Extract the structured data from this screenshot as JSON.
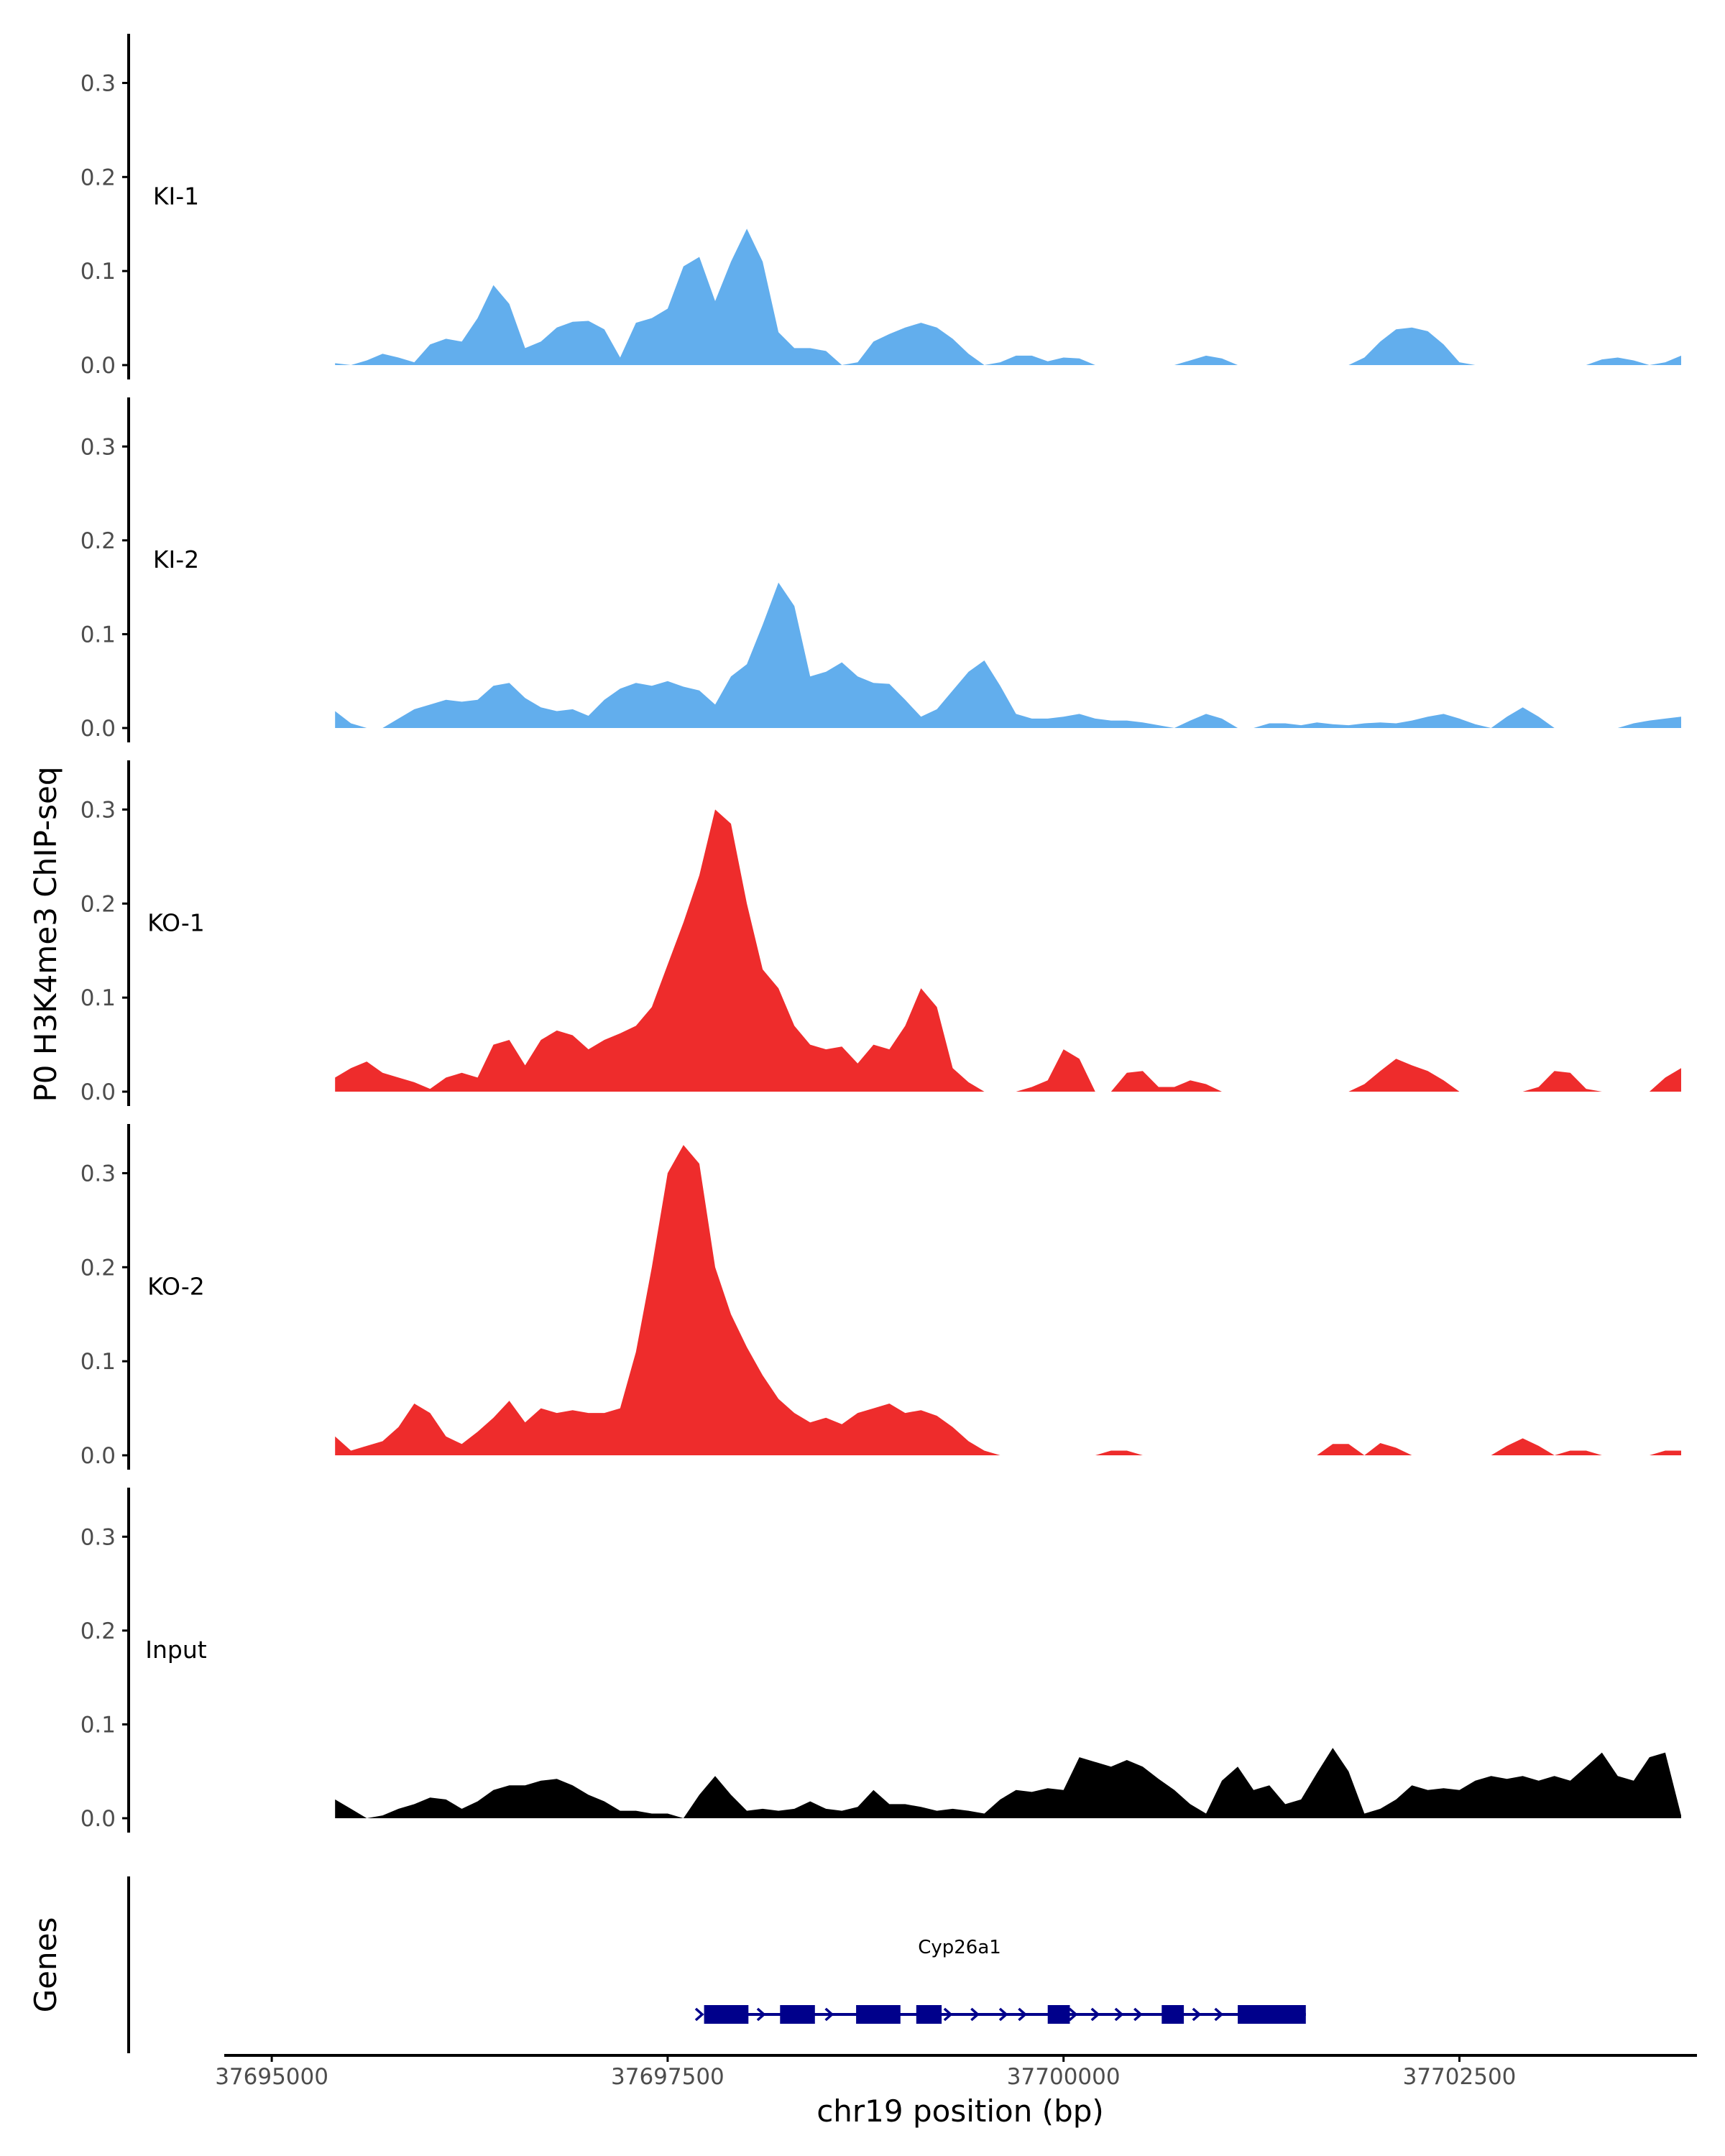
{
  "chart_data": {
    "type": "area",
    "y_axis_title": "P0 H3K4me3 ChIP-seq",
    "x_axis_title": "chr19 position (bp)",
    "gene_track_title": "Genes",
    "ylim": [
      0,
      0.35
    ],
    "y_ticks": [
      0.0,
      0.1,
      0.2,
      0.3
    ],
    "y_tick_labels": [
      "0.0",
      "0.1",
      "0.2",
      "0.3"
    ],
    "xlim": [
      37694700,
      37704000
    ],
    "x_ticks": [
      37695000,
      37697500,
      37700000,
      37702500
    ],
    "x_tick_labels": [
      "37695000",
      "37697500",
      "37700000",
      "37702500"
    ],
    "colors": {
      "KI": "#62aeed",
      "KO": "#ee2c2c",
      "Input": "#000000",
      "gene": "#00008b"
    },
    "tracks": [
      {
        "name": "KI-1",
        "color": "#62aeed",
        "x": [
          37695400,
          37695500,
          37695600,
          37695700,
          37695800,
          37695900,
          37696000,
          37696100,
          37696200,
          37696300,
          37696400,
          37696500,
          37696600,
          37696700,
          37696800,
          37696900,
          37697000,
          37697100,
          37697200,
          37697300,
          37697400,
          37697500,
          37697600,
          37697700,
          37697800,
          37697900,
          37698000,
          37698100,
          37698200,
          37698300,
          37698400,
          37698500,
          37698600,
          37698700,
          37698800,
          37698900,
          37699000,
          37699100,
          37699200,
          37699300,
          37699400,
          37699500,
          37699600,
          37699700,
          37699800,
          37699900,
          37700000,
          37700100,
          37700200,
          37700300,
          37700400,
          37700500,
          37700600,
          37700700,
          37700800,
          37700900,
          37701000,
          37701100,
          37701200,
          37701300,
          37701400,
          37701500,
          37701600,
          37701700,
          37701800,
          37701900,
          37702000,
          37702100,
          37702200,
          37702300,
          37702400,
          37702500,
          37702600,
          37702700,
          37702800,
          37702900,
          37703000,
          37703100,
          37703200,
          37703300,
          37703400,
          37703500,
          37703600,
          37703700,
          37703800,
          37703900
        ],
        "y": [
          0.002,
          0.0,
          0.005,
          0.012,
          0.008,
          0.003,
          0.022,
          0.028,
          0.025,
          0.05,
          0.085,
          0.065,
          0.018,
          0.025,
          0.04,
          0.046,
          0.047,
          0.038,
          0.008,
          0.045,
          0.05,
          0.06,
          0.105,
          0.115,
          0.068,
          0.11,
          0.145,
          0.11,
          0.035,
          0.018,
          0.018,
          0.015,
          0.0,
          0.003,
          0.025,
          0.033,
          0.04,
          0.045,
          0.04,
          0.028,
          0.012,
          0.0,
          0.003,
          0.01,
          0.01,
          0.004,
          0.008,
          0.007,
          0.0,
          0.0,
          0.0,
          0.0,
          0.0,
          0.0,
          0.005,
          0.01,
          0.007,
          0.0,
          0.0,
          0.0,
          0.0,
          0.0,
          0.0,
          0.0,
          0.0,
          0.008,
          0.025,
          0.038,
          0.04,
          0.036,
          0.022,
          0.003,
          0.0,
          0.0,
          0.0,
          0.0,
          0.0,
          0.0,
          0.0,
          0.0,
          0.006,
          0.008,
          0.005,
          0.0,
          0.003,
          0.01
        ]
      },
      {
        "name": "KI-2",
        "color": "#62aeed",
        "x": [
          37695400,
          37695500,
          37695600,
          37695700,
          37695800,
          37695900,
          37696000,
          37696100,
          37696200,
          37696300,
          37696400,
          37696500,
          37696600,
          37696700,
          37696800,
          37696900,
          37697000,
          37697100,
          37697200,
          37697300,
          37697400,
          37697500,
          37697600,
          37697700,
          37697800,
          37697900,
          37698000,
          37698100,
          37698200,
          37698300,
          37698400,
          37698500,
          37698600,
          37698700,
          37698800,
          37698900,
          37699000,
          37699100,
          37699200,
          37699300,
          37699400,
          37699500,
          37699600,
          37699700,
          37699800,
          37699900,
          37700000,
          37700100,
          37700200,
          37700300,
          37700400,
          37700500,
          37700600,
          37700700,
          37700800,
          37700900,
          37701000,
          37701100,
          37701200,
          37701300,
          37701400,
          37701500,
          37701600,
          37701700,
          37701800,
          37701900,
          37702000,
          37702100,
          37702200,
          37702300,
          37702400,
          37702500,
          37702600,
          37702700,
          37702800,
          37702900,
          37703000,
          37703100,
          37703200,
          37703300,
          37703400,
          37703500,
          37703600,
          37703700,
          37703800,
          37703900
        ],
        "y": [
          0.018,
          0.005,
          0.0,
          0.0,
          0.01,
          0.02,
          0.025,
          0.03,
          0.028,
          0.03,
          0.045,
          0.048,
          0.032,
          0.022,
          0.018,
          0.02,
          0.013,
          0.03,
          0.042,
          0.048,
          0.045,
          0.05,
          0.044,
          0.04,
          0.025,
          0.055,
          0.068,
          0.11,
          0.155,
          0.13,
          0.055,
          0.06,
          0.07,
          0.055,
          0.048,
          0.047,
          0.03,
          0.012,
          0.02,
          0.04,
          0.06,
          0.072,
          0.045,
          0.015,
          0.01,
          0.01,
          0.012,
          0.015,
          0.01,
          0.008,
          0.008,
          0.006,
          0.003,
          0.0,
          0.008,
          0.015,
          0.01,
          0.0,
          0.0,
          0.005,
          0.005,
          0.003,
          0.006,
          0.004,
          0.003,
          0.005,
          0.006,
          0.005,
          0.008,
          0.012,
          0.015,
          0.01,
          0.004,
          0.0,
          0.012,
          0.022,
          0.012,
          0.0,
          0.0,
          0.0,
          0.0,
          0.0,
          0.005,
          0.008,
          0.01,
          0.012
        ]
      },
      {
        "name": "KO-1",
        "color": "#ee2c2c",
        "x": [
          37695400,
          37695500,
          37695600,
          37695700,
          37695800,
          37695900,
          37696000,
          37696100,
          37696200,
          37696300,
          37696400,
          37696500,
          37696600,
          37696700,
          37696800,
          37696900,
          37697000,
          37697100,
          37697200,
          37697300,
          37697400,
          37697500,
          37697600,
          37697700,
          37697800,
          37697900,
          37698000,
          37698100,
          37698200,
          37698300,
          37698400,
          37698500,
          37698600,
          37698700,
          37698800,
          37698900,
          37699000,
          37699100,
          37699200,
          37699300,
          37699400,
          37699500,
          37699600,
          37699700,
          37699800,
          37699900,
          37700000,
          37700100,
          37700200,
          37700300,
          37700400,
          37700500,
          37700600,
          37700700,
          37700800,
          37700900,
          37701000,
          37701100,
          37701200,
          37701300,
          37701400,
          37701500,
          37701600,
          37701700,
          37701800,
          37701900,
          37702000,
          37702100,
          37702200,
          37702300,
          37702400,
          37702500,
          37702600,
          37702700,
          37702800,
          37702900,
          37703000,
          37703100,
          37703200,
          37703300,
          37703400,
          37703500,
          37703600,
          37703700,
          37703800,
          37703900
        ],
        "y": [
          0.015,
          0.025,
          0.032,
          0.02,
          0.015,
          0.01,
          0.003,
          0.015,
          0.02,
          0.015,
          0.05,
          0.055,
          0.028,
          0.055,
          0.065,
          0.06,
          0.045,
          0.055,
          0.062,
          0.07,
          0.09,
          0.135,
          0.18,
          0.23,
          0.3,
          0.285,
          0.2,
          0.13,
          0.11,
          0.07,
          0.05,
          0.045,
          0.048,
          0.03,
          0.05,
          0.045,
          0.07,
          0.11,
          0.09,
          0.025,
          0.01,
          0.0,
          0.0,
          0.0,
          0.005,
          0.012,
          0.045,
          0.035,
          0.0,
          0.0,
          0.02,
          0.022,
          0.005,
          0.005,
          0.012,
          0.008,
          0.0,
          0.0,
          0.0,
          0.0,
          0.0,
          0.0,
          0.0,
          0.0,
          0.0,
          0.008,
          0.022,
          0.035,
          0.028,
          0.022,
          0.012,
          0.0,
          0.0,
          0.0,
          0.0,
          0.0,
          0.005,
          0.022,
          0.02,
          0.003,
          0.0,
          0.0,
          0.0,
          0.0,
          0.015,
          0.025
        ]
      },
      {
        "name": "KO-2",
        "color": "#ee2c2c",
        "x": [
          37695400,
          37695500,
          37695600,
          37695700,
          37695800,
          37695900,
          37696000,
          37696100,
          37696200,
          37696300,
          37696400,
          37696500,
          37696600,
          37696700,
          37696800,
          37696900,
          37697000,
          37697100,
          37697200,
          37697300,
          37697400,
          37697500,
          37697600,
          37697700,
          37697800,
          37697900,
          37698000,
          37698100,
          37698200,
          37698300,
          37698400,
          37698500,
          37698600,
          37698700,
          37698800,
          37698900,
          37699000,
          37699100,
          37699200,
          37699300,
          37699400,
          37699500,
          37699600,
          37699700,
          37699800,
          37699900,
          37700000,
          37700100,
          37700200,
          37700300,
          37700400,
          37700500,
          37700600,
          37700700,
          37700800,
          37700900,
          37701000,
          37701100,
          37701200,
          37701300,
          37701400,
          37701500,
          37701600,
          37701700,
          37701800,
          37701900,
          37702000,
          37702100,
          37702200,
          37702300,
          37702400,
          37702500,
          37702600,
          37702700,
          37702800,
          37702900,
          37703000,
          37703100,
          37703200,
          37703300,
          37703400,
          37703500,
          37703600,
          37703700,
          37703800,
          37703900
        ],
        "y": [
          0.02,
          0.005,
          0.01,
          0.015,
          0.03,
          0.055,
          0.045,
          0.02,
          0.012,
          0.025,
          0.04,
          0.058,
          0.035,
          0.05,
          0.045,
          0.048,
          0.045,
          0.045,
          0.05,
          0.11,
          0.2,
          0.3,
          0.33,
          0.31,
          0.2,
          0.15,
          0.115,
          0.085,
          0.06,
          0.045,
          0.035,
          0.04,
          0.033,
          0.045,
          0.05,
          0.055,
          0.045,
          0.048,
          0.042,
          0.03,
          0.015,
          0.005,
          0.0,
          0.0,
          0.0,
          0.0,
          0.0,
          0.0,
          0.0,
          0.005,
          0.005,
          0.0,
          0.0,
          0.0,
          0.0,
          0.0,
          0.0,
          0.0,
          0.0,
          0.0,
          0.0,
          0.0,
          0.0,
          0.012,
          0.012,
          0.0,
          0.013,
          0.008,
          0.0,
          0.0,
          0.0,
          0.0,
          0.0,
          0.0,
          0.01,
          0.018,
          0.01,
          0.0,
          0.005,
          0.005,
          0.0,
          0.0,
          0.0,
          0.0,
          0.005,
          0.005
        ]
      },
      {
        "name": "Input",
        "color": "#000000",
        "x": [
          37695400,
          37695500,
          37695600,
          37695700,
          37695800,
          37695900,
          37696000,
          37696100,
          37696200,
          37696300,
          37696400,
          37696500,
          37696600,
          37696700,
          37696800,
          37696900,
          37697000,
          37697100,
          37697200,
          37697300,
          37697400,
          37697500,
          37697600,
          37697700,
          37697800,
          37697900,
          37698000,
          37698100,
          37698200,
          37698300,
          37698400,
          37698500,
          37698600,
          37698700,
          37698800,
          37698900,
          37699000,
          37699100,
          37699200,
          37699300,
          37699400,
          37699500,
          37699600,
          37699700,
          37699800,
          37699900,
          37700000,
          37700100,
          37700200,
          37700300,
          37700400,
          37700500,
          37700600,
          37700700,
          37700800,
          37700900,
          37701000,
          37701100,
          37701200,
          37701300,
          37701400,
          37701500,
          37701600,
          37701700,
          37701800,
          37701900,
          37702000,
          37702100,
          37702200,
          37702300,
          37702400,
          37702500,
          37702600,
          37702700,
          37702800,
          37702900,
          37703000,
          37703100,
          37703200,
          37703300,
          37703400,
          37703500,
          37703600,
          37703700,
          37703800,
          37703900
        ],
        "y": [
          0.02,
          0.01,
          0.0,
          0.003,
          0.01,
          0.015,
          0.022,
          0.02,
          0.01,
          0.018,
          0.03,
          0.035,
          0.035,
          0.04,
          0.042,
          0.035,
          0.025,
          0.018,
          0.008,
          0.008,
          0.005,
          0.005,
          0.0,
          0.025,
          0.045,
          0.025,
          0.008,
          0.01,
          0.008,
          0.01,
          0.018,
          0.01,
          0.008,
          0.012,
          0.03,
          0.015,
          0.015,
          0.012,
          0.008,
          0.01,
          0.008,
          0.005,
          0.02,
          0.03,
          0.028,
          0.032,
          0.03,
          0.065,
          0.06,
          0.055,
          0.062,
          0.055,
          0.042,
          0.03,
          0.015,
          0.005,
          0.04,
          0.055,
          0.03,
          0.035,
          0.015,
          0.02,
          0.048,
          0.075,
          0.05,
          0.005,
          0.01,
          0.02,
          0.035,
          0.03,
          0.032,
          0.03,
          0.04,
          0.045,
          0.042,
          0.045,
          0.04,
          0.045,
          0.04,
          0.055,
          0.07,
          0.045,
          0.04,
          0.065,
          0.07,
          0.003
        ]
      }
    ],
    "gene": {
      "name": "Cyp26a1",
      "strand": "+",
      "start": 37697730,
      "end": 37701530,
      "exons": [
        [
          37697730,
          37698010
        ],
        [
          37698210,
          37698430
        ],
        [
          37698690,
          37698970
        ],
        [
          37699070,
          37699230
        ],
        [
          37699900,
          37700040
        ],
        [
          37700620,
          37700760
        ],
        [
          37701100,
          37701530
        ]
      ],
      "arrows": [
        37697700,
        37698090,
        37698520,
        37699270,
        37699440,
        37699620,
        37699740,
        37700060,
        37700200,
        37700350,
        37700470,
        37700840,
        37700980
      ]
    }
  }
}
